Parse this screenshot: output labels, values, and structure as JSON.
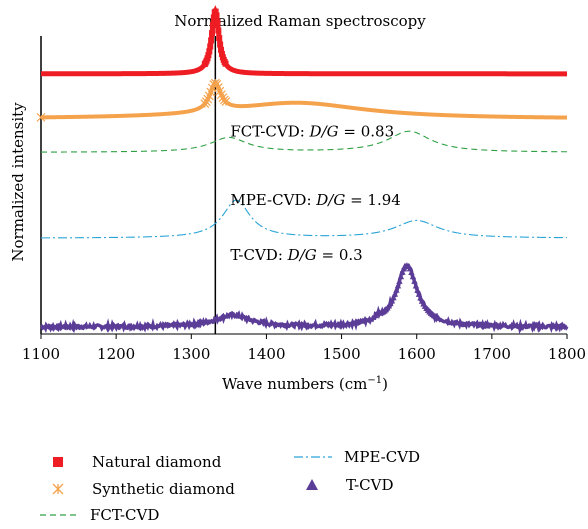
{
  "chart_data": {
    "type": "line",
    "title": "Normalized Raman spectroscopy",
    "xlabel": "Wave numbers (cm",
    "xlabel_sup": "−1",
    "xlabel_close": ")",
    "ylabel": "Normalized intensity",
    "xlim": [
      1100,
      1800
    ],
    "x_ticks": [
      "1100",
      "1200",
      "1300",
      "1400",
      "1500",
      "1600",
      "1700",
      "1800"
    ],
    "y_ticks_shown": false,
    "grid": false,
    "legend_position": "bottom",
    "reference_line_x": 1332,
    "annotations": [
      {
        "prefix": "FCT-CVD: ",
        "ratio": "D/G",
        "suffix": " = 0.83",
        "x": 1352,
        "y": 0.655
      },
      {
        "prefix": "MPE-CVD: ",
        "ratio": "D/G",
        "suffix": " = 1.94",
        "x": 1352,
        "y": 0.42
      },
      {
        "prefix": "T-CVD: ",
        "ratio": "D/G",
        "suffix": " = 0.3",
        "x": 1352,
        "y": 0.23
      }
    ],
    "series": [
      {
        "name": "Natural diamond",
        "color": "#ee1d23",
        "marker": "square",
        "baseline": 0.87,
        "peaks": [
          {
            "center": 1332,
            "height": 0.215,
            "width": 6
          }
        ],
        "x": [
          1100,
          1200,
          1300,
          1320,
          1325,
          1330,
          1332,
          1334,
          1340,
          1345,
          1360,
          1400,
          1500,
          1600,
          1700,
          1800
        ],
        "y": [
          0.87,
          0.871,
          0.875,
          0.902,
          0.935,
          1.06,
          1.085,
          1.06,
          0.935,
          0.902,
          0.876,
          0.872,
          0.871,
          0.871,
          0.87,
          0.87
        ]
      },
      {
        "name": "Synthetic diamond",
        "color": "#f5a24d",
        "marker": "asterisk",
        "baseline": 0.715,
        "peaks": [
          {
            "center": 1332,
            "height": 0.095,
            "width": 9
          },
          {
            "center": 1440,
            "height": 0.055,
            "width": 110
          }
        ],
        "x": [
          1100,
          1200,
          1300,
          1320,
          1332,
          1345,
          1400,
          1440,
          1500,
          1600,
          1700,
          1800
        ],
        "y": [
          0.715,
          0.72,
          0.735,
          0.76,
          0.815,
          0.775,
          0.77,
          0.77,
          0.76,
          0.735,
          0.73,
          0.73
        ]
      },
      {
        "name": "FCT-CVD",
        "color": "#2ea043",
        "line_style": "dashed",
        "baseline": 0.6,
        "peaks": [
          {
            "center": 1350,
            "height": 0.05,
            "width": 30
          },
          {
            "center": 1590,
            "height": 0.072,
            "width": 35
          }
        ],
        "x": [
          1100,
          1300,
          1350,
          1400,
          1500,
          1590,
          1650,
          1700,
          1800
        ],
        "y": [
          0.6,
          0.61,
          0.65,
          0.615,
          0.608,
          0.672,
          0.615,
          0.6,
          0.6
        ]
      },
      {
        "name": "MPE-CVD",
        "color": "#2aa4d6",
        "line_style": "dashdot",
        "baseline": 0.305,
        "peaks": [
          {
            "center": 1360,
            "height": 0.13,
            "width": 22
          },
          {
            "center": 1600,
            "height": 0.06,
            "width": 35
          }
        ],
        "x": [
          1100,
          1300,
          1360,
          1420,
          1500,
          1600,
          1660,
          1700,
          1800
        ],
        "y": [
          0.305,
          0.315,
          0.435,
          0.32,
          0.31,
          0.365,
          0.31,
          0.305,
          0.305
        ]
      },
      {
        "name": "T-CVD",
        "color": "#5b3c97",
        "marker": "triangle",
        "baseline": 0.0,
        "peaks": [
          {
            "center": 1355,
            "height": 0.04,
            "width": 28
          },
          {
            "center": 1587,
            "height": 0.21,
            "width": 17
          },
          {
            "center": 1548,
            "height": 0.012,
            "width": 5
          }
        ],
        "x": [
          1100,
          1300,
          1355,
          1400,
          1500,
          1560,
          1587,
          1620,
          1700,
          1800
        ],
        "y": [
          0.0,
          0.012,
          0.04,
          0.02,
          0.008,
          0.05,
          0.21,
          0.04,
          0.005,
          0.0
        ]
      }
    ]
  }
}
